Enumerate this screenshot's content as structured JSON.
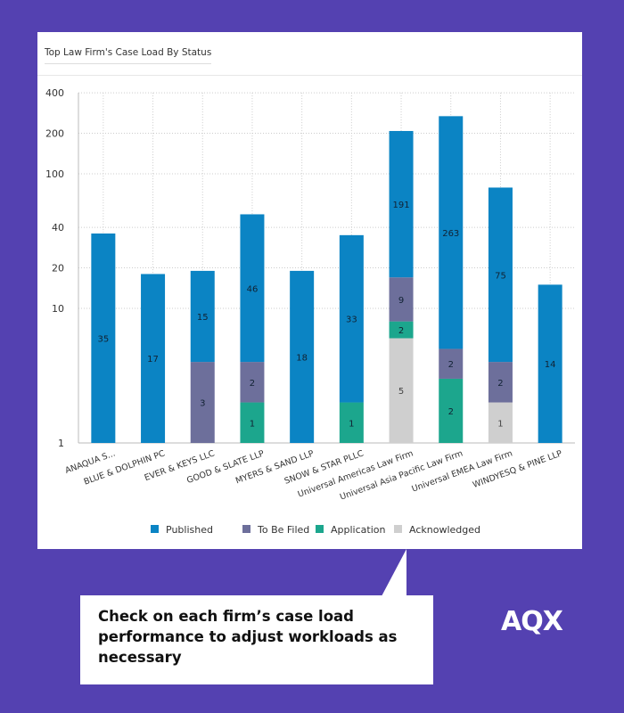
{
  "brand": "AQX",
  "callout": "Check on each firm’s case load performance to adjust workloads as necessary",
  "colors": {
    "background": "#5441b1",
    "Published": "#0b84c4",
    "To Be Filed": "#6d6f9b",
    "Application": "#1ca68d",
    "Acknowledged": "#cfcfcf"
  },
  "chart_data": {
    "type": "bar",
    "stacked": true,
    "title": "Top Law Firm's Case Load By Status",
    "yscale": "log",
    "ylim": [
      1,
      400
    ],
    "yticks": [
      1,
      10,
      20,
      40,
      100,
      200,
      400
    ],
    "grid": true,
    "legend_position": "bottom",
    "categories": [
      "ANAQUA S...",
      "BLUE & DOLPHIN PC",
      "EVER & KEYS LLC",
      "GOOD & SLATE LLP",
      "MYERS & SAND LLP",
      "SNOW & STAR PLLC",
      "Universal Americas Law Firm",
      "Universal Asia Pacific Law Firm",
      "Universal EMEA Law Firm",
      "WINDYESQ & PINE LLP"
    ],
    "series": [
      {
        "name": "Acknowledged",
        "values": [
          0,
          0,
          0,
          0,
          0,
          0,
          5,
          0,
          1,
          0
        ]
      },
      {
        "name": "Application",
        "values": [
          0,
          0,
          0,
          1,
          0,
          1,
          2,
          2,
          0,
          0
        ]
      },
      {
        "name": "To Be Filed",
        "values": [
          0,
          0,
          3,
          2,
          0,
          0,
          9,
          2,
          2,
          0
        ]
      },
      {
        "name": "Published",
        "values": [
          35,
          17,
          15,
          46,
          18,
          33,
          191,
          263,
          75,
          14
        ]
      }
    ],
    "legend_order": [
      "Published",
      "To Be Filed",
      "Application",
      "Acknowledged"
    ]
  }
}
